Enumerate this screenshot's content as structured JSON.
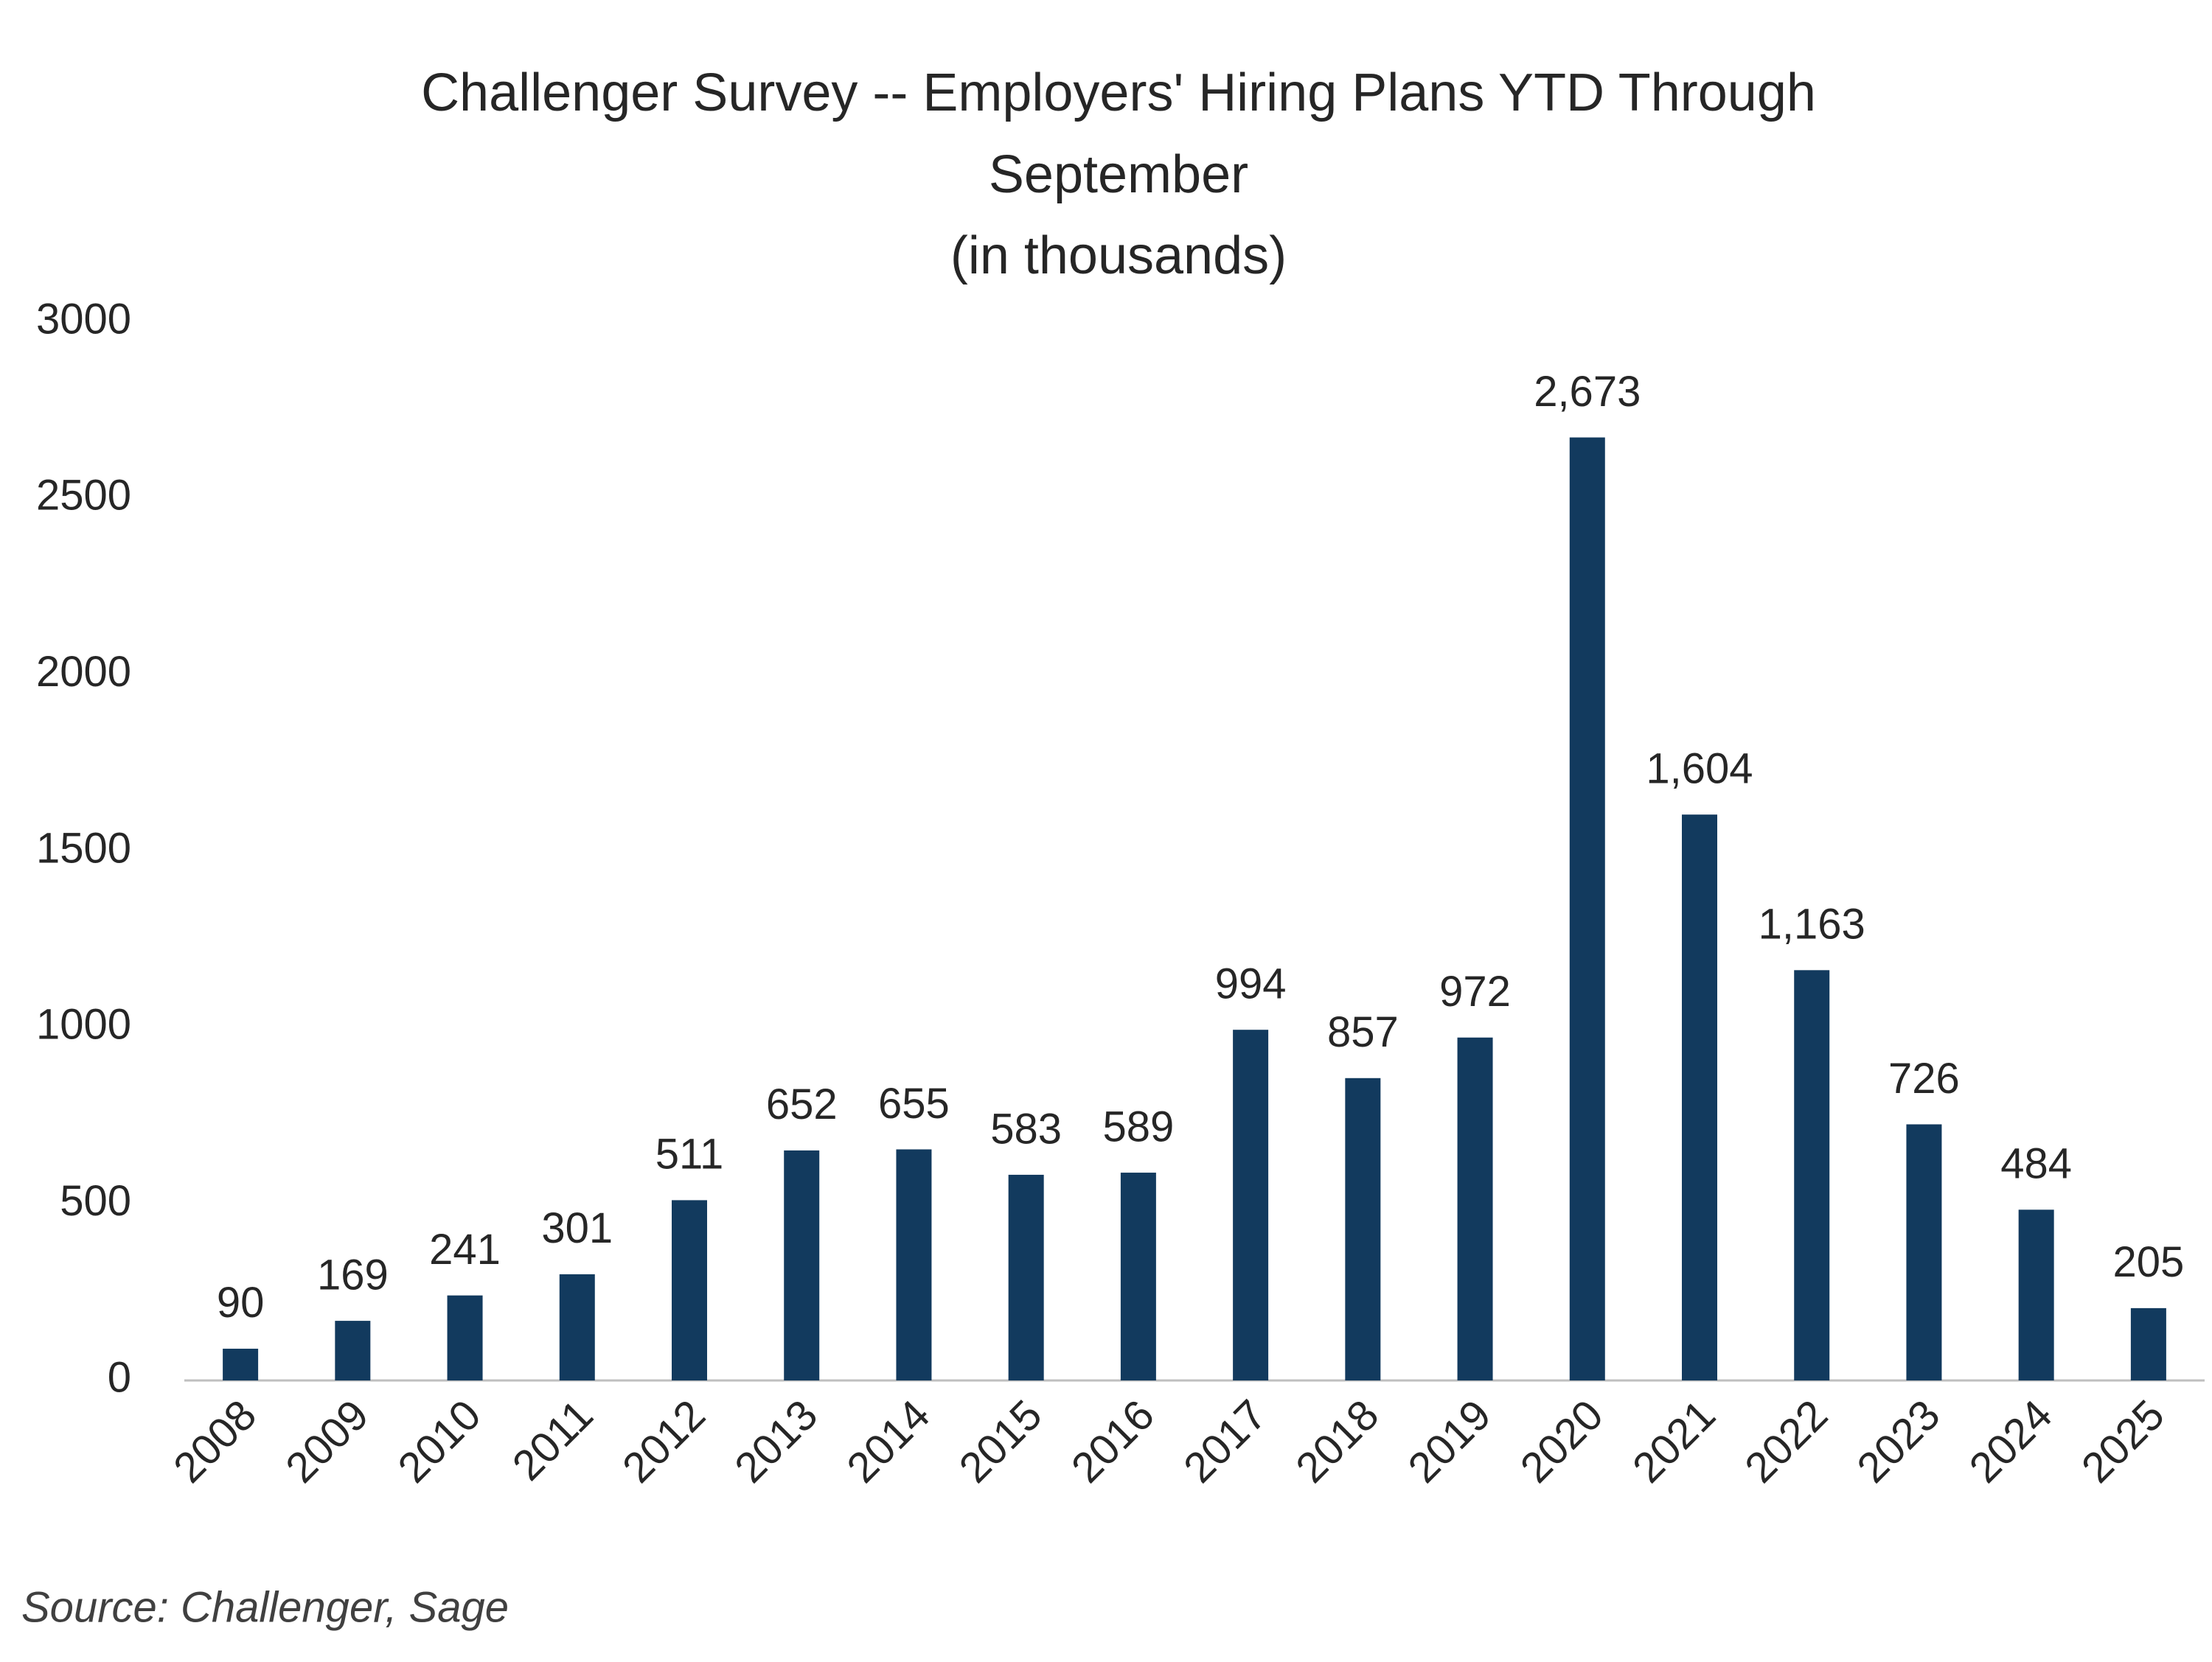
{
  "chart_data": {
    "type": "bar",
    "title": [
      "Challenger Survey -- Employers' Hiring Plans YTD Through",
      "September"
    ],
    "subtitle": "(in thousands)",
    "categories": [
      "2008",
      "2009",
      "2010",
      "2011",
      "2012",
      "2013",
      "2014",
      "2015",
      "2016",
      "2017",
      "2018",
      "2019",
      "2020",
      "2021",
      "2022",
      "2023",
      "2024",
      "2025"
    ],
    "values": [
      90,
      169,
      241,
      301,
      511,
      652,
      655,
      583,
      589,
      994,
      857,
      972,
      2673,
      1604,
      1163,
      726,
      484,
      205
    ],
    "value_labels": [
      "90",
      "169",
      "241",
      "301",
      "511",
      "652",
      "655",
      "583",
      "589",
      "994",
      "857",
      "972",
      "2,673",
      "1,604",
      "1,163",
      "726",
      "484",
      "205"
    ],
    "color": "#123a5e",
    "ylim": [
      0,
      3000
    ],
    "yticks": [
      0,
      500,
      1000,
      1500,
      2000,
      2500,
      3000
    ],
    "grid": false,
    "source": "Source: Challenger, Sage"
  }
}
